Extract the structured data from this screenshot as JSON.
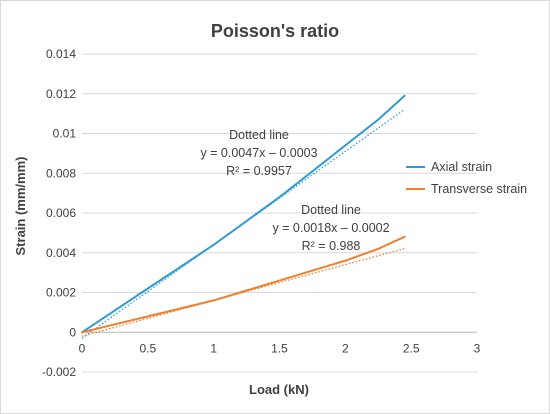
{
  "chart_data": {
    "type": "line",
    "title": "Poisson's ratio",
    "xlabel": "Load (kN)",
    "ylabel": "Strain (mm/mm)",
    "xlim": [
      0,
      3
    ],
    "ylim": [
      -0.002,
      0.014
    ],
    "x_ticks": [
      "0",
      "0.5",
      "1",
      "1.5",
      "2",
      "2.5",
      "3"
    ],
    "y_ticks": [
      "0.014",
      "0.012",
      "0.01",
      "0.008",
      "0.006",
      "0.004",
      "0.002",
      "0",
      "-0.002"
    ],
    "grid": "horizontal",
    "legend_position": "right",
    "series": [
      {
        "name": "Axial strain",
        "color": "#2E9BD6",
        "x": [
          0,
          0.25,
          0.5,
          0.75,
          1.0,
          1.25,
          1.5,
          1.75,
          2.0,
          2.25,
          2.45
        ],
        "y": [
          0,
          0.0011,
          0.0022,
          0.0033,
          0.0044,
          0.0056,
          0.0068,
          0.0081,
          0.0094,
          0.0107,
          0.0119
        ]
      },
      {
        "name": "Transverse strain",
        "color": "#F07F2D",
        "x": [
          0,
          0.25,
          0.5,
          0.75,
          1.0,
          1.25,
          1.5,
          1.75,
          2.0,
          2.25,
          2.45
        ],
        "y": [
          0,
          0.0004,
          0.0008,
          0.0012,
          0.0016,
          0.0021,
          0.0026,
          0.0031,
          0.0036,
          0.0042,
          0.0048
        ]
      }
    ],
    "trendlines": [
      {
        "series": "Axial strain",
        "color": "#2E9BD6",
        "slope": 0.0047,
        "intercept": -0.0003,
        "x_range": [
          0,
          2.45
        ]
      },
      {
        "series": "Transverse strain",
        "color": "#F07F2D",
        "slope": 0.0018,
        "intercept": -0.0002,
        "x_range": [
          0,
          2.45
        ]
      }
    ],
    "annotations": [
      {
        "lines": [
          "Dotted line",
          "y = 0.0047x – 0.0003",
          "R² = 0.9957"
        ]
      },
      {
        "lines": [
          "Dotted line",
          "y = 0.0018x – 0.0002",
          "R² = 0.988"
        ]
      }
    ]
  }
}
